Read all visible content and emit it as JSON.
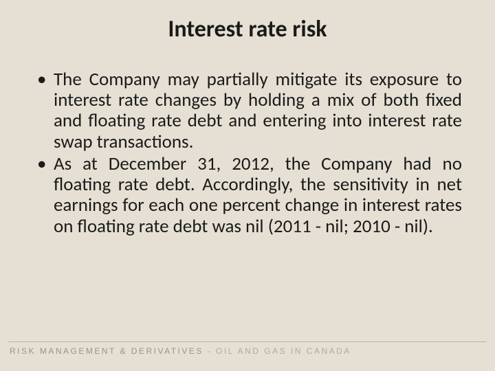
{
  "slide": {
    "background_color": "#e5e0d3",
    "title": {
      "text": "Interest rate risk",
      "fontsize": 34,
      "fontweight": 700,
      "color": "#1a1a1a",
      "align": "center"
    },
    "bullets": {
      "fontsize": 27,
      "color": "#1a1a1a",
      "align": "justify",
      "line_height": 1.12,
      "items": [
        "The Company may partially mitigate its exposure to interest rate changes by holding a mix of both fixed and floating rate debt and entering into interest rate swap transactions.",
        "As at December 31, 2012, the Company had no floating rate debt. Accordingly, the sensitivity in net earnings for each one percent change in interest rates on floating rate debt was nil (2011 - nil; 2010 - nil)."
      ]
    },
    "footer": {
      "line_color": "#b8b3a5",
      "text_primary": "RISK MANAGEMENT & DERIVATIVES",
      "text_secondary": " - OIL AND GAS IN CANADA",
      "color_primary": "#9a9486",
      "color_secondary": "#b0aa9b",
      "fontsize": 12,
      "letter_spacing": 2.5
    }
  }
}
